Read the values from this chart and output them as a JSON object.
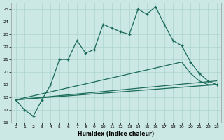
{
  "xlabel": "Humidex (Indice chaleur)",
  "bg_color": "#cce8e4",
  "line_color": "#1a6b5a",
  "grid_color": "#aad4cc",
  "xlim": [
    -0.5,
    23.5
  ],
  "ylim": [
    16,
    25.5
  ],
  "yticks": [
    16,
    17,
    18,
    19,
    20,
    21,
    22,
    23,
    24,
    25
  ],
  "xticks": [
    0,
    1,
    2,
    3,
    4,
    5,
    6,
    7,
    8,
    9,
    10,
    11,
    12,
    13,
    14,
    15,
    16,
    17,
    18,
    19,
    20,
    21,
    22,
    23
  ],
  "series": [
    {
      "x": [
        0,
        1,
        2,
        3,
        4,
        5,
        6,
        7,
        8,
        9,
        10,
        11,
        12,
        13,
        14,
        15,
        16,
        17,
        18,
        19,
        20,
        21,
        22,
        23
      ],
      "y": [
        17.8,
        17.0,
        16.5,
        17.8,
        19.0,
        21.0,
        21.0,
        22.5,
        21.5,
        21.8,
        23.8,
        23.5,
        23.2,
        23.0,
        25.0,
        24.6,
        25.2,
        23.8,
        22.5,
        22.1,
        20.8,
        19.9,
        19.3,
        19.0
      ],
      "marker": "+"
    },
    {
      "x": [
        0,
        19,
        20,
        21,
        22,
        23
      ],
      "y": [
        17.8,
        20.8,
        19.9,
        19.3,
        19.0,
        19.0
      ],
      "marker": null
    },
    {
      "x": [
        0,
        23
      ],
      "y": [
        17.8,
        19.3
      ],
      "marker": null
    },
    {
      "x": [
        0,
        23
      ],
      "y": [
        17.8,
        19.0
      ],
      "marker": null
    }
  ]
}
